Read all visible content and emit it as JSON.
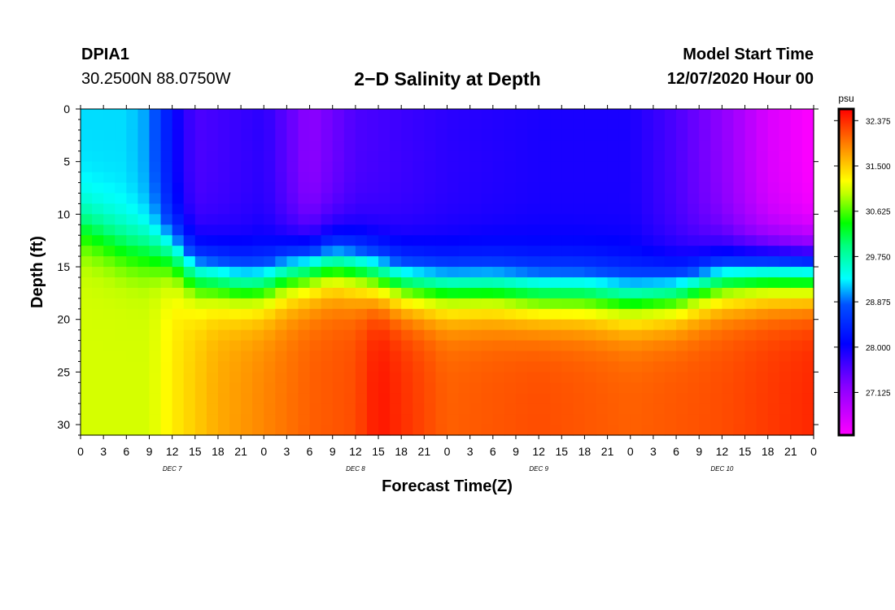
{
  "header": {
    "station": "DPIA1",
    "coordinates": "30.2500N 88.0750W",
    "title": "2−D Salinity at Depth",
    "model_start_label": "Model Start Time",
    "model_start_value": "12/07/2020 Hour 00"
  },
  "colorbar": {
    "unit": "psu",
    "tick_labels": [
      "32.375",
      "31.500",
      "30.625",
      "29.750",
      "28.875",
      "28.000",
      "27.125"
    ],
    "tick_values": [
      32.375,
      31.5,
      30.625,
      29.75,
      28.875,
      28.0,
      27.125
    ],
    "range": [
      26.3,
      32.6
    ]
  },
  "chart_data": {
    "type": "heatmap",
    "title": "2−D Salinity at Depth",
    "xlabel": "Forecast Time(Z)",
    "ylabel": "Depth (ft)",
    "x_hours_range": [
      0,
      96
    ],
    "y_range": [
      0,
      31
    ],
    "x_tick_labels": [
      "0",
      "3",
      "6",
      "9",
      "12",
      "15",
      "18",
      "21",
      "0",
      "3",
      "6",
      "9",
      "12",
      "15",
      "18",
      "21",
      "0",
      "3",
      "6",
      "9",
      "12",
      "15",
      "18",
      "21",
      "0",
      "3",
      "6",
      "9",
      "12",
      "15",
      "18",
      "21",
      "0"
    ],
    "y_tick_labels": [
      "0",
      "5",
      "10",
      "15",
      "20",
      "25",
      "30"
    ],
    "y_tick_values": [
      0,
      5,
      10,
      15,
      20,
      25,
      30
    ],
    "day_labels": [
      {
        "label": "DEC 7",
        "hour": 12
      },
      {
        "label": "DEC 8",
        "hour": 36
      },
      {
        "label": "DEC 9",
        "hour": 60
      },
      {
        "label": "DEC 10",
        "hour": 84
      }
    ],
    "field_units": "psu",
    "field_description": "salinity by forecast hour (x) and depth in ft (y); surface values approx 26.3-28.9 psu, bottom values approx 31-32.5 psu",
    "halocline_depth_ft": {
      "hours": [
        0,
        6,
        12,
        15,
        21,
        24,
        27,
        33,
        36,
        42,
        48,
        54,
        60,
        66,
        72,
        78,
        84,
        90,
        96
      ],
      "depth": [
        11,
        13,
        13.5,
        15.5,
        16.5,
        16.5,
        15.5,
        14.5,
        15,
        16.5,
        17,
        17,
        17.5,
        17.5,
        18,
        17.5,
        16,
        15.5,
        15.5
      ]
    },
    "surface_salinity": {
      "hours": [
        0,
        6,
        9,
        10.5,
        12,
        15,
        24,
        30,
        36,
        48,
        60,
        72,
        78,
        84,
        90,
        96
      ],
      "values": [
        29.2,
        29.2,
        29.0,
        28.6,
        28.1,
        27.6,
        27.8,
        27.2,
        27.6,
        27.8,
        27.9,
        27.9,
        27.6,
        27.2,
        26.6,
        26.3
      ]
    },
    "bottom_salinity": {
      "hours": [
        0,
        9,
        12,
        18,
        24,
        30,
        36,
        39,
        48,
        60,
        72,
        84,
        96
      ],
      "values": [
        31.0,
        31.0,
        31.3,
        31.7,
        31.9,
        32.1,
        32.2,
        32.5,
        32.1,
        32.2,
        32.1,
        32.2,
        32.4
      ]
    }
  }
}
